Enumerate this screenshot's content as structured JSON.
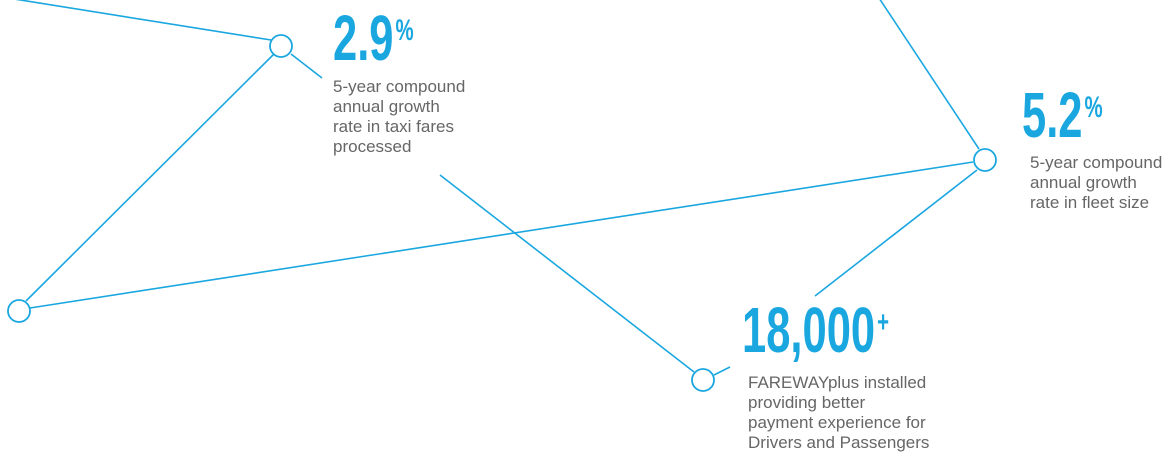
{
  "stats": [
    {
      "value": "2.9",
      "suffix": "%",
      "lines": [
        "5-year compound",
        "annual growth",
        "rate in taxi fares",
        "processed"
      ]
    },
    {
      "value": "5.2",
      "suffix": "%",
      "lines": [
        "5-year compound",
        "annual growth",
        "rate in fleet size"
      ]
    },
    {
      "value": "18,000",
      "suffix": "+",
      "lines": [
        "FAREWAYplus installed",
        "providing better",
        "payment experience for",
        "Drivers and Passengers"
      ]
    }
  ]
}
